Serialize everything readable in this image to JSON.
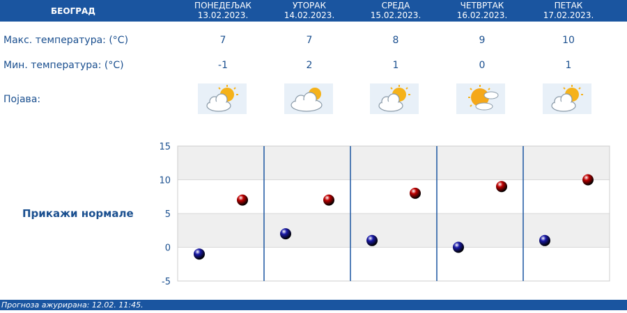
{
  "header": {
    "city": "БЕОГРАД",
    "days": [
      {
        "name": "ПОНЕДЕЉАК",
        "date": "13.02.2023."
      },
      {
        "name": "УТОРАК",
        "date": "14.02.2023."
      },
      {
        "name": "СРЕДА",
        "date": "15.02.2023."
      },
      {
        "name": "ЧЕТВРТАК",
        "date": "16.02.2023."
      },
      {
        "name": "ПЕТАК",
        "date": "17.02.2023."
      }
    ]
  },
  "rows": {
    "max_label": "Макс. температура: (°C)",
    "min_label": "Мин. температура: (°C)",
    "phenomenon_label": "Појава:",
    "max": [
      "7",
      "7",
      "8",
      "9",
      "10"
    ],
    "min": [
      "-1",
      "2",
      "1",
      "0",
      "1"
    ],
    "icons": [
      "partly-cloudy-icon",
      "cloudy-sun-icon",
      "partly-cloudy-icon",
      "mostly-sunny-icon",
      "partly-cloudy-icon"
    ]
  },
  "show_normals_label": "Прикажи нормале",
  "chart_data": {
    "type": "scatter",
    "categories": [
      "ПОНЕДЕЉАК",
      "УТОРАК",
      "СРЕДА",
      "ЧЕТВРТАК",
      "ПЕТАК"
    ],
    "ylim": [
      -5,
      15
    ],
    "yticks": [
      15,
      10,
      5,
      0,
      -5
    ],
    "series": [
      {
        "values": [
          -1,
          2,
          1,
          0,
          1
        ],
        "color": "#1a1aa8"
      },
      {
        "values": [
          7,
          7,
          8,
          9,
          10
        ],
        "color": "#c00000"
      }
    ],
    "grid": true
  },
  "footer": {
    "text": "Прогноза ажурирана:  12.02. 11:45."
  },
  "colors": {
    "header_bg": "#1a55a0",
    "text": "#1a4f8f"
  }
}
